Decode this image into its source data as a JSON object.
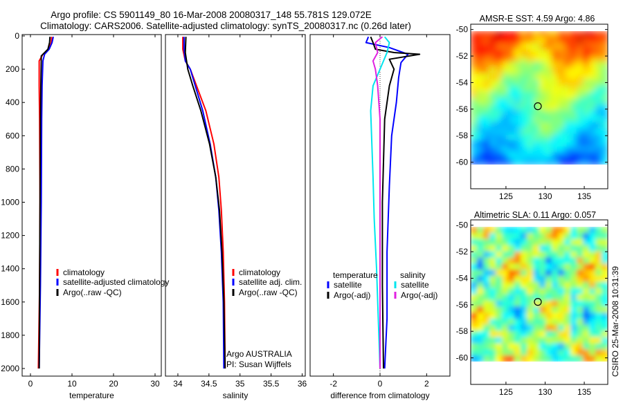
{
  "header": {
    "line1": "Argo profile: CS 5901149_80 16-Mar-2008 20080317_148 55.781S 129.072E",
    "line2": "Climatology: CARS2006. Satellite-adjusted climatology: synTS_20080317.nc (0.26d later)"
  },
  "footer_stamp": "CSIRO 25-Mar-2008 10:31:39",
  "colors": {
    "climatology": "#ff0000",
    "satellite": "#0000ff",
    "argo": "#000000",
    "satellite_salinity": "#00e5ee",
    "argo_salinity": "#e020e0"
  },
  "chart_data": [
    {
      "type": "line",
      "id": "temperature",
      "xlabel": "temperature",
      "ylabel": "",
      "xlim": [
        -2,
        31.5
      ],
      "ylim": [
        2060,
        0
      ],
      "xticks": [
        0,
        10,
        20,
        30
      ],
      "yticks": [
        0,
        200,
        400,
        600,
        800,
        1000,
        1200,
        1400,
        1600,
        1800,
        2000
      ],
      "legend_position": "lower-right",
      "series": [
        {
          "name": "climatology",
          "color": "#ff0000",
          "points": [
            [
              5.1,
              5
            ],
            [
              5.0,
              40
            ],
            [
              4.4,
              80
            ],
            [
              3.0,
              110
            ],
            [
              2.1,
              150
            ],
            [
              2.1,
              300
            ],
            [
              2.2,
              500
            ],
            [
              2.3,
              1000
            ],
            [
              2.2,
              1500
            ],
            [
              1.9,
              2000
            ]
          ]
        },
        {
          "name": "satellite-adjusted climatology",
          "color": "#0000ff",
          "points": [
            [
              5.5,
              5
            ],
            [
              5.2,
              40
            ],
            [
              4.5,
              80
            ],
            [
              3.4,
              110
            ],
            [
              3.0,
              150
            ],
            [
              2.8,
              300
            ],
            [
              2.7,
              500
            ],
            [
              2.6,
              1000
            ],
            [
              2.4,
              1500
            ],
            [
              2.1,
              2000
            ]
          ]
        },
        {
          "name": "Argo(..raw -QC)",
          "color": "#000000",
          "points": [
            [
              4.7,
              5
            ],
            [
              4.6,
              40
            ],
            [
              4.2,
              80
            ],
            [
              2.6,
              120
            ],
            [
              2.6,
              150
            ],
            [
              2.5,
              300
            ],
            [
              2.4,
              500
            ],
            [
              2.3,
              1000
            ],
            [
              2.2,
              1500
            ],
            [
              2.1,
              2000
            ]
          ]
        }
      ]
    },
    {
      "type": "line",
      "id": "salinity",
      "xlabel": "salinity",
      "ylabel": "",
      "xlim": [
        33.8,
        36.05
      ],
      "ylim": [
        2060,
        0
      ],
      "xticks": [
        34,
        34.5,
        35,
        35.5,
        36
      ],
      "legend_position": "lower-right",
      "footnote": [
        "Argo AUSTRALIA",
        "PI: Susan Wijffels"
      ],
      "series": [
        {
          "name": "climatology",
          "color": "#ff0000",
          "points": [
            [
              34.08,
              5
            ],
            [
              34.08,
              80
            ],
            [
              34.12,
              150
            ],
            [
              34.2,
              200
            ],
            [
              34.3,
              300
            ],
            [
              34.45,
              450
            ],
            [
              34.58,
              650
            ],
            [
              34.66,
              850
            ],
            [
              34.7,
              1050
            ],
            [
              34.73,
              1300
            ],
            [
              34.75,
              1600
            ],
            [
              34.76,
              2000
            ]
          ]
        },
        {
          "name": "satellite adj. clim.",
          "color": "#0000ff",
          "points": [
            [
              34.1,
              5
            ],
            [
              34.1,
              80
            ],
            [
              34.12,
              150
            ],
            [
              34.2,
              200
            ],
            [
              34.28,
              300
            ],
            [
              34.4,
              450
            ],
            [
              34.52,
              650
            ],
            [
              34.61,
              850
            ],
            [
              34.66,
              1050
            ],
            [
              34.7,
              1300
            ],
            [
              34.73,
              1600
            ],
            [
              34.74,
              2000
            ]
          ]
        },
        {
          "name": "Argo(..raw -QC)",
          "color": "#000000",
          "points": [
            [
              34.13,
              5
            ],
            [
              34.12,
              100
            ],
            [
              34.16,
              200
            ],
            [
              34.24,
              300
            ],
            [
              34.37,
              450
            ],
            [
              34.51,
              650
            ],
            [
              34.61,
              850
            ],
            [
              34.67,
              1050
            ],
            [
              34.71,
              1300
            ],
            [
              34.74,
              1600
            ],
            [
              34.76,
              2000
            ]
          ]
        }
      ]
    },
    {
      "type": "line",
      "id": "difference",
      "xlabel": "difference from climatology",
      "ylabel": "",
      "xlim": [
        -3.0,
        3.0
      ],
      "ylim": [
        2060,
        0
      ],
      "xticks": [
        -2,
        0,
        2
      ],
      "legend_position": "lower-center",
      "legend_groups": [
        {
          "title": "temperature",
          "entries": [
            {
              "name": "satellite",
              "color": "#0000ff"
            },
            {
              "name": "Argo(-adj)",
              "color": "#000000"
            }
          ]
        },
        {
          "title": "salinity",
          "entries": [
            {
              "name": "satellite",
              "color": "#00e5ee"
            },
            {
              "name": "Argo(-adj)",
              "color": "#e020e0"
            }
          ]
        }
      ],
      "series": [
        {
          "name": "temperature satellite",
          "color": "#0000ff",
          "points": [
            [
              -0.5,
              5
            ],
            [
              -0.6,
              40
            ],
            [
              0.4,
              70
            ],
            [
              1.2,
              110
            ],
            [
              0.9,
              160
            ],
            [
              0.8,
              250
            ],
            [
              0.7,
              400
            ],
            [
              0.5,
              600
            ],
            [
              0.4,
              900
            ],
            [
              0.3,
              1300
            ],
            [
              0.3,
              1700
            ],
            [
              0.2,
              2000
            ]
          ]
        },
        {
          "name": "temperature Argo(-adj)",
          "color": "#000000",
          "points": [
            [
              -0.4,
              5
            ],
            [
              -0.3,
              40
            ],
            [
              -0.2,
              80
            ],
            [
              0.6,
              100
            ],
            [
              1.7,
              110
            ],
            [
              0.4,
              140
            ],
            [
              0.6,
              200
            ],
            [
              0.4,
              300
            ],
            [
              0.2,
              500
            ],
            [
              0.1,
              1000
            ],
            [
              0.1,
              1500
            ],
            [
              0.15,
              2000
            ]
          ]
        },
        {
          "name": "salinity satellite",
          "color": "#00e5ee",
          "points": [
            [
              0.2,
              5
            ],
            [
              0.4,
              40
            ],
            [
              0.3,
              100
            ],
            [
              0.0,
              200
            ],
            [
              -0.3,
              300
            ],
            [
              -0.4,
              450
            ],
            [
              -0.35,
              650
            ],
            [
              -0.3,
              850
            ],
            [
              -0.25,
              1100
            ],
            [
              -0.15,
              1400
            ],
            [
              -0.05,
              1800
            ],
            [
              0.0,
              2000
            ]
          ]
        },
        {
          "name": "salinity Argo(-adj)",
          "color": "#e020e0",
          "points": [
            [
              0.1,
              5
            ],
            [
              -0.2,
              40
            ],
            [
              -0.1,
              100
            ],
            [
              -0.3,
              150
            ],
            [
              -0.2,
              200
            ],
            [
              -0.1,
              300
            ],
            [
              0.0,
              500
            ],
            [
              0.0,
              1000
            ],
            [
              0.0,
              1500
            ],
            [
              0.0,
              2000
            ]
          ]
        }
      ]
    },
    {
      "type": "heatmap",
      "id": "sst-map",
      "title": "AMSR-E SST: 4.59  Argo: 4.86",
      "xlim": [
        120.5,
        138
      ],
      "ylim": [
        -62,
        -49.6
      ],
      "xticks": [
        125,
        130,
        135
      ],
      "yticks": [
        -50,
        -52,
        -54,
        -56,
        -58,
        -60
      ],
      "marker": {
        "lon": 129.072,
        "lat": -55.781
      }
    },
    {
      "type": "heatmap",
      "id": "sla-map",
      "title": "Altimetric SLA: 0.11  Argo: 0.057",
      "xlim": [
        120.5,
        138
      ],
      "ylim": [
        -62,
        -49.6
      ],
      "xticks": [
        125,
        130,
        135
      ],
      "yticks": [
        -50,
        -52,
        -54,
        -56,
        -58,
        -60
      ],
      "marker": {
        "lon": 129.072,
        "lat": -55.781
      }
    }
  ]
}
